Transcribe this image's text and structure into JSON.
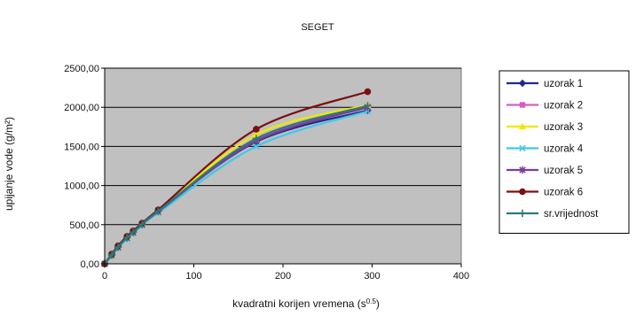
{
  "chart_data": {
    "type": "line",
    "title": "SEGET",
    "xlabel": "kvadratni korijen vremena (s",
    "xlabel_sup": "0.5",
    "xlabel_end": ")",
    "ylabel": "upijanje vode (g/m²)",
    "xlim": [
      0,
      400
    ],
    "ylim": [
      0,
      2500
    ],
    "x_ticks": [
      "0",
      "100",
      "200",
      "300",
      "400"
    ],
    "y_ticks": [
      "0,00",
      "500,00",
      "1000,00",
      "1500,00",
      "2000,00",
      "2500,00"
    ],
    "grid": "horizontal",
    "plot_background": "#c0c0c0",
    "legend_position": "right",
    "series": [
      {
        "name": "uzorak 1",
        "color": "#1f2a8a",
        "marker": "diamond",
        "x": [
          0,
          8,
          15,
          25,
          32,
          42,
          60,
          170,
          295
        ],
        "y": [
          0,
          110,
          210,
          330,
          400,
          500,
          670,
          1560,
          1960
        ]
      },
      {
        "name": "uzorak 2",
        "color": "#d45fc2",
        "marker": "square",
        "x": [
          0,
          8,
          15,
          25,
          32,
          42,
          60,
          170,
          295
        ],
        "y": [
          0,
          115,
          215,
          335,
          405,
          505,
          675,
          1590,
          2010
        ]
      },
      {
        "name": "uzorak 3",
        "color": "#f2e600",
        "marker": "triangle",
        "x": [
          0,
          8,
          15,
          25,
          32,
          42,
          60,
          170,
          295
        ],
        "y": [
          0,
          118,
          220,
          340,
          410,
          510,
          680,
          1650,
          2030
        ]
      },
      {
        "name": "uzorak 4",
        "color": "#40c8e8",
        "marker": "x",
        "x": [
          0,
          8,
          15,
          25,
          32,
          42,
          60,
          170,
          295
        ],
        "y": [
          0,
          105,
          205,
          320,
          390,
          490,
          650,
          1500,
          1950
        ]
      },
      {
        "name": "uzorak 5",
        "color": "#7a3d9a",
        "marker": "star",
        "x": [
          0,
          8,
          15,
          25,
          32,
          42,
          60,
          170,
          295
        ],
        "y": [
          0,
          112,
          212,
          332,
          402,
          502,
          668,
          1570,
          2000
        ]
      },
      {
        "name": "uzorak 6",
        "color": "#7a1010",
        "marker": "circle",
        "x": [
          0,
          8,
          15,
          25,
          32,
          42,
          60,
          170,
          295
        ],
        "y": [
          0,
          125,
          230,
          350,
          420,
          520,
          690,
          1720,
          2200
        ]
      },
      {
        "name": "sr.vrijednost",
        "color": "#2b7a78",
        "marker": "plus",
        "x": [
          0,
          8,
          15,
          25,
          32,
          42,
          60,
          170,
          295
        ],
        "y": [
          0,
          114,
          215,
          335,
          405,
          505,
          672,
          1600,
          2020
        ]
      }
    ]
  }
}
